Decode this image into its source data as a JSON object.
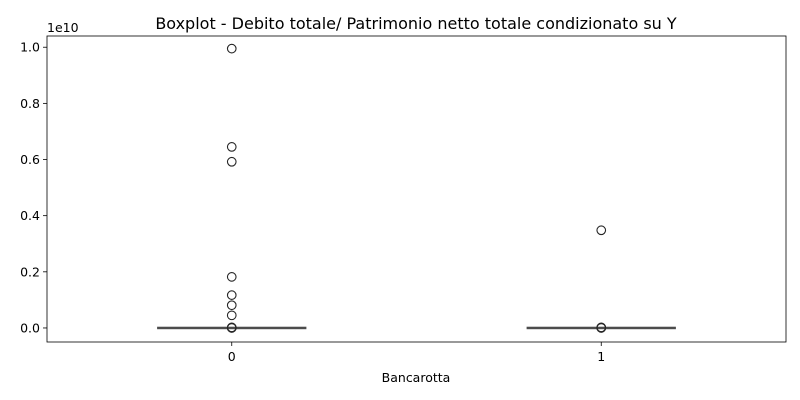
{
  "chart_data": {
    "type": "boxplot",
    "title": "Boxplot - Debito totale/ Patrimonio netto totale condizionato su Y",
    "xlabel": "Bancarotta",
    "ylabel": "",
    "offset_label": "1e10",
    "categories": [
      "0",
      "1"
    ],
    "ylim": [
      -0.05,
      1.04
    ],
    "yticks": [
      0.0,
      0.2,
      0.4,
      0.6,
      0.8,
      1.0
    ],
    "ytick_labels": [
      "0.0",
      "0.2",
      "0.4",
      "0.6",
      "0.8",
      "1.0"
    ],
    "grid": false,
    "legend": "none",
    "box_color": "#4d4d4d",
    "boxes": [
      {
        "category": "0",
        "q1": 0.0,
        "median": 0.0,
        "q3": 0.0,
        "whisker_low": 0.0,
        "whisker_high": 0.0,
        "outliers": [
          0.995,
          0.645,
          0.592,
          0.182,
          0.117,
          0.081,
          0.045,
          0.002,
          0.001,
          0.0
        ]
      },
      {
        "category": "1",
        "q1": 0.0,
        "median": 0.0,
        "q3": 0.0,
        "whisker_low": 0.0,
        "whisker_high": 0.0,
        "outliers": [
          0.348,
          0.002,
          0.001,
          0.0
        ]
      }
    ]
  }
}
